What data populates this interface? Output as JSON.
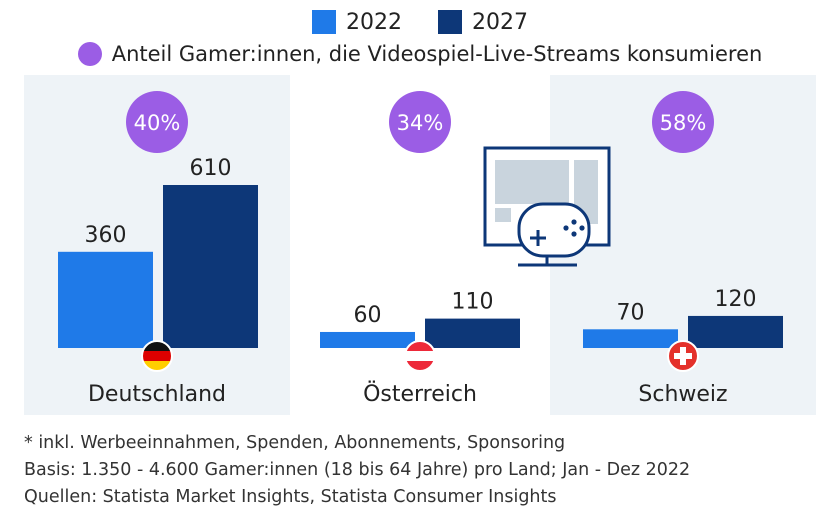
{
  "legend": {
    "series_2022": "2022",
    "series_2027": "2027",
    "share_label": "Anteil Gamer:innen, die Videospiel-Live-Streams konsumieren"
  },
  "colors": {
    "series_2022": "#1f7ae8",
    "series_2027": "#0d3778",
    "share_circle": "#9b5de5",
    "panel_bg": "#eef3f7"
  },
  "chart_data": {
    "type": "bar",
    "categories": [
      "Deutschland",
      "Österreich",
      "Schweiz"
    ],
    "series": [
      {
        "name": "2022",
        "values": [
          360,
          60,
          70
        ]
      },
      {
        "name": "2027",
        "values": [
          610,
          110,
          120
        ]
      }
    ],
    "share_values": [
      "40%",
      "34%",
      "58%"
    ],
    "flags": [
      "german-flag",
      "austrian-flag",
      "swiss-flag"
    ]
  },
  "footnotes": {
    "line1": "* inkl. Werbeeinnahmen, Spenden, Abonnements, Sponsoring",
    "line2": "Basis: 1.350 - 4.600 Gamer:innen (18 bis 64 Jahre) pro Land; Jan - Dez 2022",
    "line3": "Quellen: Statista Market Insights, Statista Consumer Insights"
  },
  "illustration": {
    "icon": "monitor-gamepad-icon"
  }
}
